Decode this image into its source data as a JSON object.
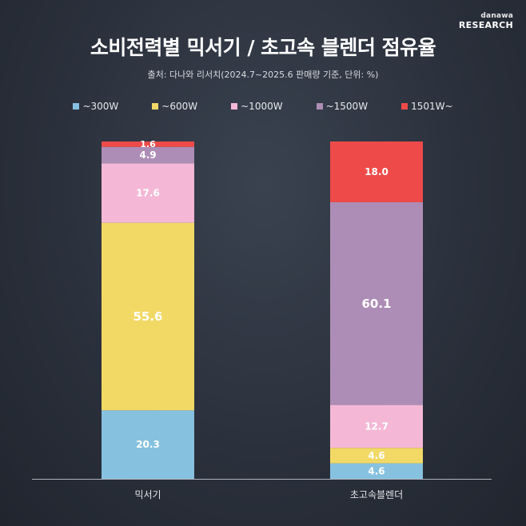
{
  "brand": {
    "top": "danawa",
    "bottom": "RESEARCH"
  },
  "chart_data": {
    "type": "bar",
    "stacked": true,
    "title": "소비전력별 믹서기 / 초고속 블렌더 점유율",
    "subtitle": "출처: 다나와 리서치(2024.7~2025.6 판매량 기준, 단위: %)",
    "categories": [
      "믹서기",
      "초고속블렌더"
    ],
    "series": [
      {
        "name": "~300W",
        "color": "#86c1e0",
        "values": [
          20.3,
          4.6
        ]
      },
      {
        "name": "~600W",
        "color": "#f2d966",
        "values": [
          55.6,
          4.6
        ]
      },
      {
        "name": "~1000W",
        "color": "#f4b8d6",
        "values": [
          17.6,
          12.7
        ]
      },
      {
        "name": "~1500W",
        "color": "#ad8db6",
        "values": [
          4.9,
          60.1
        ]
      },
      {
        "name": "1501W~",
        "color": "#ee4a4a",
        "values": [
          1.6,
          18.0
        ]
      }
    ],
    "ylim": [
      0,
      100
    ],
    "legend": "top",
    "grid": false
  }
}
